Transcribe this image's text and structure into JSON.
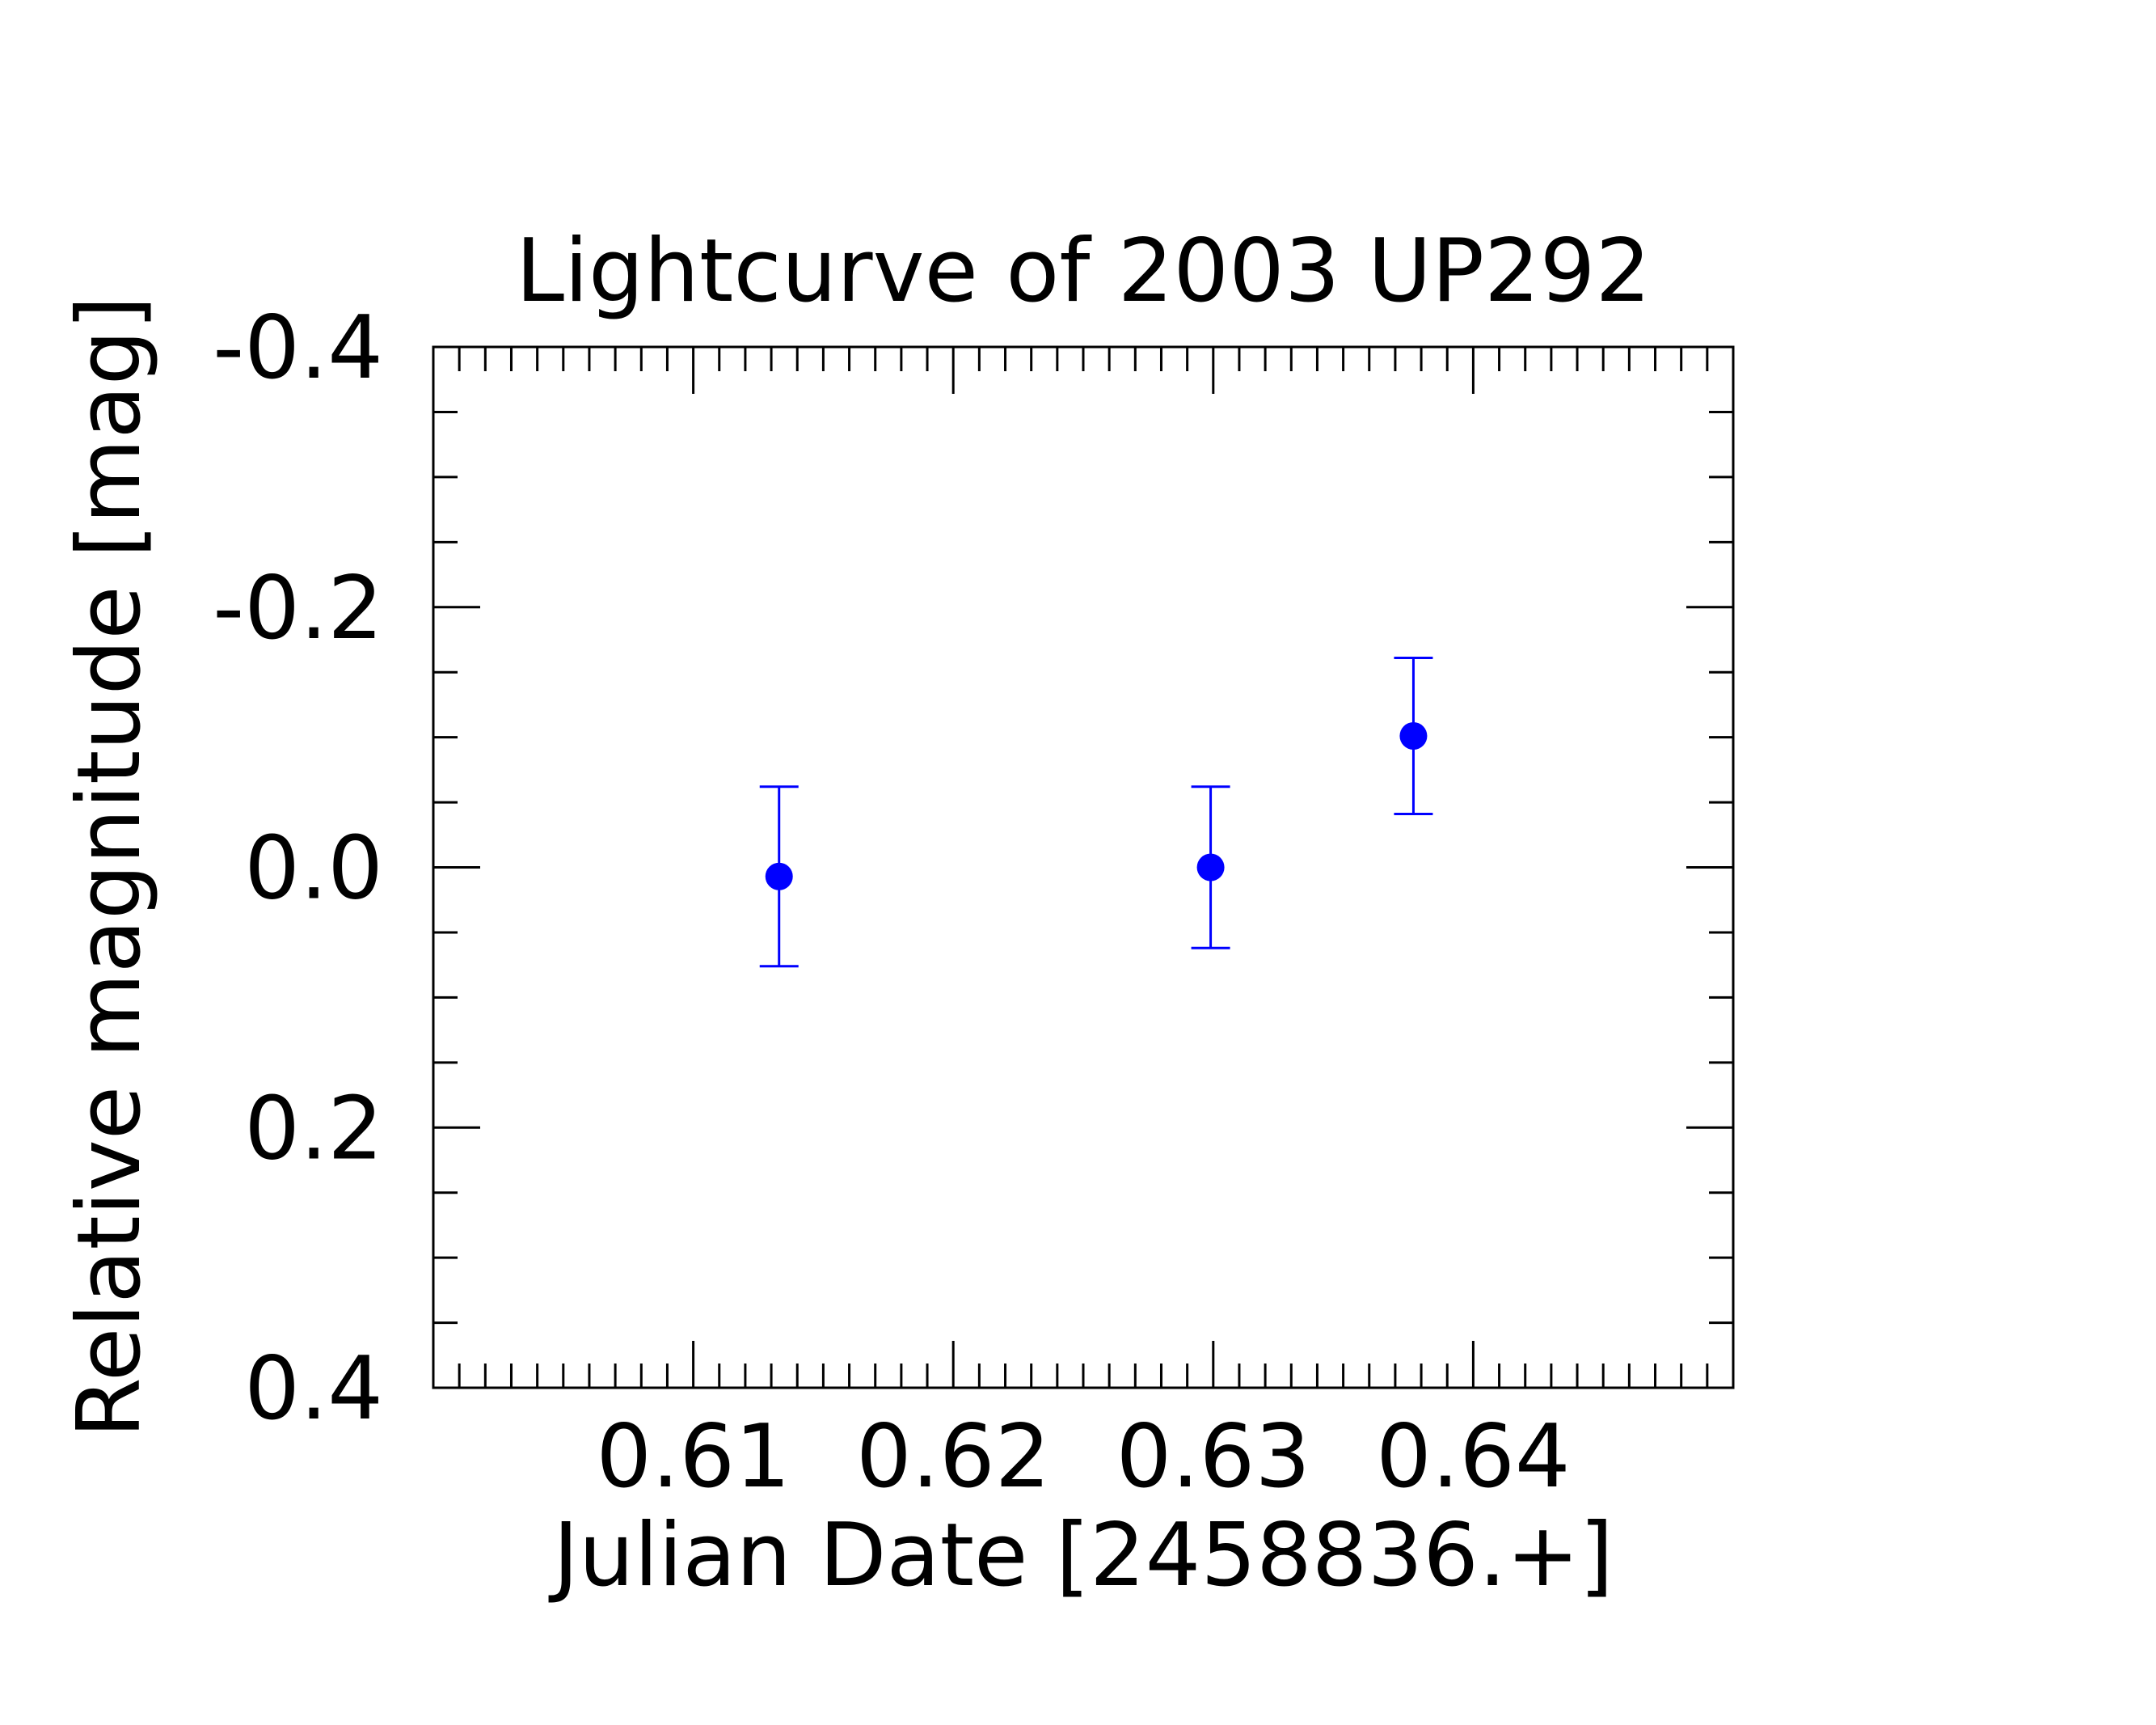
{
  "chart_data": {
    "type": "scatter",
    "title": "Lightcurve of 2003 UP292",
    "xlabel": "Julian Date [2458836.+]",
    "ylabel": "Relative magnitude [mag]",
    "xlim": [
      0.6,
      0.65
    ],
    "ylim": [
      0.4,
      -0.4
    ],
    "y_inverted": true,
    "grid": false,
    "x_ticks": [
      {
        "value": 0.61,
        "label": "0.61"
      },
      {
        "value": 0.62,
        "label": "0.62"
      },
      {
        "value": 0.63,
        "label": "0.63"
      },
      {
        "value": 0.64,
        "label": "0.64"
      }
    ],
    "y_ticks": [
      {
        "value": -0.4,
        "label": "-0.4"
      },
      {
        "value": -0.2,
        "label": "-0.2"
      },
      {
        "value": 0.0,
        "label": "0.0"
      },
      {
        "value": 0.2,
        "label": "0.2"
      },
      {
        "value": 0.4,
        "label": "0.4"
      }
    ],
    "x_minor_step": 0.001,
    "y_minor_step": 0.05,
    "series": [
      {
        "color": "#0000ff",
        "points": [
          {
            "x": 0.6133,
            "y": 0.007,
            "err": 0.069
          },
          {
            "x": 0.6299,
            "y": 0.0,
            "err": 0.062
          },
          {
            "x": 0.6377,
            "y": -0.101,
            "err": 0.06
          }
        ]
      }
    ]
  }
}
